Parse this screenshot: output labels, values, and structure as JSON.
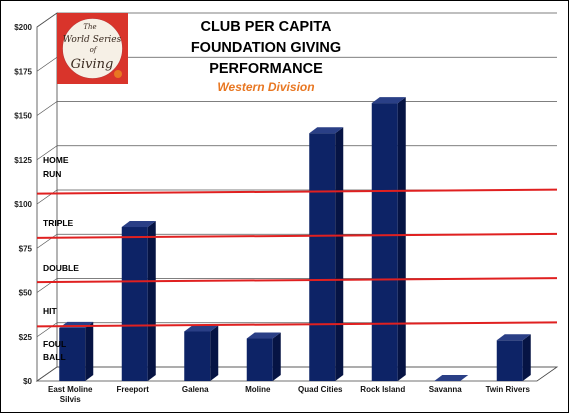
{
  "chart_data": {
    "type": "bar",
    "title_lines": [
      "CLUB PER CAPITA",
      "FOUNDATION GIVING",
      "PERFORMANCE"
    ],
    "subtitle": "Western Division",
    "categories": [
      "East Moline Silvis",
      "Freeport",
      "Galena",
      "Moline",
      "Quad Cities",
      "Rock Island",
      "Savanna",
      "Twin Rivers"
    ],
    "values": [
      30,
      87,
      28,
      24,
      140,
      157,
      0,
      23
    ],
    "ylim": [
      0,
      200
    ],
    "yticks": [
      "$0",
      "$25",
      "$50",
      "$75",
      "$100",
      "$125",
      "$150",
      "$175",
      "$200"
    ],
    "thresholds": [
      {
        "label_lines": [
          "FOUL",
          "BALL"
        ],
        "value": null
      },
      {
        "label_lines": [
          "HIT"
        ],
        "value": 32
      },
      {
        "label_lines": [
          "DOUBLE"
        ],
        "value": 57
      },
      {
        "label_lines": [
          "TRIPLE"
        ],
        "value": 82
      },
      {
        "label_lines": [
          "HOME",
          "RUN"
        ],
        "value": 107
      }
    ],
    "grid": true,
    "colors": {
      "bar": "#0d2366",
      "bar_side": "#061444",
      "bar_top": "#2a3f86",
      "threshold": "#e02020"
    }
  },
  "logo": {
    "text_lines": [
      "The",
      "World Series",
      "of",
      "Giving"
    ]
  }
}
